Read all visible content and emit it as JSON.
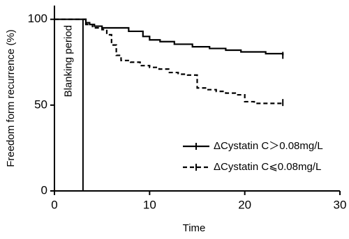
{
  "chart_data": {
    "type": "line",
    "step": "post",
    "xlabel": "Time",
    "ylabel": "Freedom form recurrence (%)",
    "xlim": [
      0,
      30
    ],
    "ylim": [
      0,
      108
    ],
    "xticks": [
      0,
      10,
      20,
      30
    ],
    "yticks": [
      0,
      50,
      100
    ],
    "annotation": {
      "label": "Blanking period",
      "x": 3
    },
    "series": [
      {
        "name": "ΔCystatin C＞0.08mg/L",
        "color": "#000000",
        "dash": false,
        "x": [
          0,
          3,
          3.3,
          3.7,
          4.2,
          5,
          7.8,
          9.3,
          10,
          11.1,
          12.6,
          14.5,
          16.3,
          18,
          19.6,
          22.2,
          24
        ],
        "values": [
          100,
          100,
          98,
          97,
          96,
          95,
          93,
          90,
          88,
          87,
          85.5,
          84,
          83,
          82,
          81,
          80,
          79
        ]
      },
      {
        "name": "ΔCystatin C⩽0.08mg/L",
        "color": "#000000",
        "dash": true,
        "x": [
          0,
          3,
          3.3,
          4,
          5,
          5.5,
          6,
          6.5,
          7,
          8,
          9,
          10,
          11,
          12,
          13,
          14,
          15,
          16,
          17,
          18,
          19,
          20,
          21,
          24
        ],
        "values": [
          100,
          100,
          97,
          95,
          94,
          91,
          85,
          79,
          76,
          75,
          73,
          72,
          71,
          69,
          68,
          67.5,
          60,
          59,
          58,
          57,
          56,
          52,
          51,
          51.5
        ]
      }
    ]
  }
}
